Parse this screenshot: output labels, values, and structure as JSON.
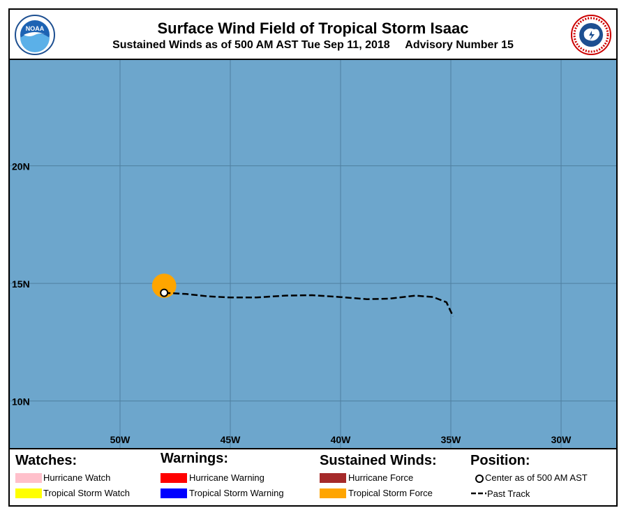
{
  "header": {
    "title": "Surface Wind Field of Tropical Storm Isaac",
    "subtitle": "Sustained Winds as of 500 AM AST Tue Sep 11, 2018     Advisory Number 15",
    "logo_left": "NOAA",
    "logo_right": "NATIONAL WEATHER SERVICE"
  },
  "map": {
    "ocean_color": "#6da6cc",
    "grid_color": "#4f7f9f",
    "lat_labels": [
      "20N",
      "15N",
      "10N"
    ],
    "lon_labels": [
      "50W",
      "45W",
      "40W",
      "35W",
      "30W"
    ],
    "lat_range": [
      8,
      24.5
    ],
    "lon_range": [
      -55,
      -27.5
    ],
    "wind_field": {
      "category": "Tropical Storm Force",
      "color": "#ffa500",
      "center": [
        -48.0,
        14.9
      ],
      "radius_deg": 0.55
    },
    "center": {
      "lon": -48.0,
      "lat": 14.6
    },
    "past_track": [
      [
        -48.0,
        14.6
      ],
      [
        -47.0,
        14.55
      ],
      [
        -46.0,
        14.45
      ],
      [
        -45.0,
        14.4
      ],
      [
        -43.8,
        14.4
      ],
      [
        -42.5,
        14.48
      ],
      [
        -41.3,
        14.5
      ],
      [
        -40.0,
        14.42
      ],
      [
        -38.8,
        14.33
      ],
      [
        -37.8,
        14.35
      ],
      [
        -36.6,
        14.48
      ],
      [
        -35.8,
        14.42
      ],
      [
        -35.2,
        14.2
      ],
      [
        -34.9,
        13.6
      ]
    ]
  },
  "legend": {
    "watches": {
      "heading": "Watches:",
      "items": [
        {
          "label": "Hurricane Watch",
          "color": "#ffc0cb"
        },
        {
          "label": "Tropical Storm Watch",
          "color": "#ffff00"
        }
      ]
    },
    "warnings": {
      "heading": "Warnings:",
      "items": [
        {
          "label": "Hurricane Warning",
          "color": "#ff0000"
        },
        {
          "label": "Tropical Storm Warning",
          "color": "#0000ff"
        }
      ]
    },
    "winds": {
      "heading": "Sustained Winds:",
      "items": [
        {
          "label": "Hurricane Force",
          "color": "#a52a2a"
        },
        {
          "label": "Tropical Storm Force",
          "color": "#ffa500"
        }
      ]
    },
    "position": {
      "heading": "Position:",
      "items": [
        {
          "label": "Center as of 500 AM AST"
        },
        {
          "label": "Past Track"
        }
      ]
    }
  }
}
